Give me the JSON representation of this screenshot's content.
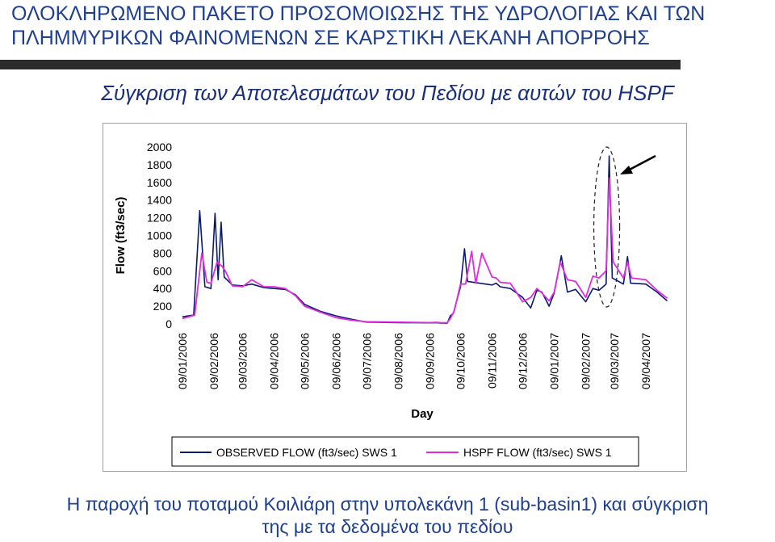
{
  "header": {
    "title_line1": "ΟΛΟΚΛΗΡΩΜΕΝΟ ΠΑΚΕΤΟ ΠΡΟΣΟΜΟΙΩΣΗΣ ΤΗΣ ΥΔΡΟΛΟΓΙΑΣ ΚΑΙ ΤΩΝ",
    "title_line2": "ΠΛΗΜΜΥΡΙΚΩΝ ΦΑΙΝΟΜΕΝΩΝ ΣΕ ΚΑΡΣΤΙΚΗ ΛΕΚΑΝΗ ΑΠΟΡΡΟΗΣ",
    "subtitle": "Σύγκριση των Αποτελεσμάτων του Πεδίου με αυτών του HSPF"
  },
  "caption": {
    "line1": "Η παροχή του ποταμού Κοιλιάρη στην υπολεκάνη 1 (sub-basin1) και σύγκριση",
    "line2": "της με τα δεδομένα του πεδίου"
  },
  "colors": {
    "observed": "#0a1a6e",
    "hspf": "#e22be0",
    "title": "#1f3f8f"
  },
  "chart_data": {
    "type": "line",
    "xlabel": "Day",
    "ylabel": "Flow (ft3/sec)",
    "ylim": [
      0,
      2000
    ],
    "yticks": [
      0,
      200,
      400,
      600,
      800,
      1000,
      1200,
      1400,
      1600,
      1800,
      2000
    ],
    "xlim": [
      "09/01/2006",
      "09/04/2007"
    ],
    "xticks": [
      "09/01/2006",
      "09/02/2006",
      "09/03/2006",
      "09/04/2006",
      "09/05/2006",
      "09/06/2006",
      "09/07/2006",
      "09/08/2006",
      "09/09/2006",
      "09/10/2006",
      "09/11/2006",
      "09/12/2006",
      "09/01/2007",
      "09/02/2007",
      "09/03/2007",
      "09/04/2007"
    ],
    "legend_position": "bottom",
    "annotations": [
      "dashed ellipse around peak near 09/03/2007",
      "arrow pointing to peak"
    ],
    "series": [
      {
        "name": "OBSERVED FLOW (ft3/sec) SWS 1",
        "points": [
          [
            "09/01/2006",
            80
          ],
          [
            "20/01/2006",
            100
          ],
          [
            "26/01/2006",
            1280
          ],
          [
            "31/01/2006",
            420
          ],
          [
            "06/02/2006",
            400
          ],
          [
            "10/02/2006",
            1250
          ],
          [
            "13/02/2006",
            500
          ],
          [
            "16/02/2006",
            1150
          ],
          [
            "19/02/2006",
            530
          ],
          [
            "27/02/2006",
            440
          ],
          [
            "09/03/2006",
            430
          ],
          [
            "18/03/2006",
            450
          ],
          [
            "30/03/2006",
            410
          ],
          [
            "09/04/2006",
            400
          ],
          [
            "20/04/2006",
            390
          ],
          [
            "30/04/2006",
            330
          ],
          [
            "09/05/2006",
            220
          ],
          [
            "25/05/2006",
            140
          ],
          [
            "09/06/2006",
            90
          ],
          [
            "25/06/2006",
            50
          ],
          [
            "09/07/2006",
            20
          ],
          [
            "09/08/2006",
            15
          ],
          [
            "09/09/2006",
            12
          ],
          [
            "15/09/2006",
            15
          ],
          [
            "20/09/2006",
            8
          ],
          [
            "26/09/2006",
            8
          ],
          [
            "29/09/2006",
            90
          ],
          [
            "02/10/2006",
            120
          ],
          [
            "09/10/2006",
            420
          ],
          [
            "13/10/2006",
            850
          ],
          [
            "16/10/2006",
            480
          ],
          [
            "09/11/2006",
            440
          ],
          [
            "13/11/2006",
            460
          ],
          [
            "17/11/2006",
            420
          ],
          [
            "27/11/2006",
            400
          ],
          [
            "09/12/2006",
            300
          ],
          [
            "17/12/2006",
            180
          ],
          [
            "23/12/2006",
            380
          ],
          [
            "28/12/2006",
            360
          ],
          [
            "04/01/2007",
            200
          ],
          [
            "09/01/2007",
            350
          ],
          [
            "16/01/2007",
            770
          ],
          [
            "22/01/2007",
            360
          ],
          [
            "30/01/2007",
            390
          ],
          [
            "09/02/2007",
            250
          ],
          [
            "16/02/2007",
            400
          ],
          [
            "22/02/2007",
            380
          ],
          [
            "01/03/2007",
            450
          ],
          [
            "04/03/2007",
            1900
          ],
          [
            "07/03/2007",
            520
          ],
          [
            "18/03/2007",
            450
          ],
          [
            "22/03/2007",
            760
          ],
          [
            "25/03/2007",
            460
          ],
          [
            "09/04/2007",
            450
          ],
          [
            "20/04/2007",
            360
          ],
          [
            "30/04/2007",
            260
          ]
        ]
      },
      {
        "name": "HSPF FLOW (ft3/sec) SWS 1",
        "points": [
          [
            "09/01/2006",
            60
          ],
          [
            "21/01/2006",
            100
          ],
          [
            "28/01/2006",
            800
          ],
          [
            "02/02/2006",
            470
          ],
          [
            "06/02/2006",
            460
          ],
          [
            "12/02/2006",
            700
          ],
          [
            "17/02/2006",
            650
          ],
          [
            "20/02/2006",
            600
          ],
          [
            "27/02/2006",
            430
          ],
          [
            "09/03/2006",
            420
          ],
          [
            "18/03/2006",
            500
          ],
          [
            "30/03/2006",
            420
          ],
          [
            "09/04/2006",
            420
          ],
          [
            "20/04/2006",
            400
          ],
          [
            "30/04/2006",
            320
          ],
          [
            "09/05/2006",
            200
          ],
          [
            "25/05/2006",
            130
          ],
          [
            "09/06/2006",
            70
          ],
          [
            "25/06/2006",
            40
          ],
          [
            "09/07/2006",
            25
          ],
          [
            "09/08/2006",
            20
          ],
          [
            "09/09/2006",
            15
          ],
          [
            "15/09/2006",
            18
          ],
          [
            "21/09/2006",
            12
          ],
          [
            "26/09/2006",
            15
          ],
          [
            "29/09/2006",
            60
          ],
          [
            "03/10/2006",
            150
          ],
          [
            "09/10/2006",
            450
          ],
          [
            "14/10/2006",
            450
          ],
          [
            "20/10/2006",
            820
          ],
          [
            "24/10/2006",
            460
          ],
          [
            "30/10/2006",
            800
          ],
          [
            "09/11/2006",
            530
          ],
          [
            "13/11/2006",
            520
          ],
          [
            "17/11/2006",
            470
          ],
          [
            "27/11/2006",
            460
          ],
          [
            "09/12/2006",
            250
          ],
          [
            "17/12/2006",
            300
          ],
          [
            "23/12/2006",
            400
          ],
          [
            "28/12/2006",
            350
          ],
          [
            "04/01/2007",
            260
          ],
          [
            "09/01/2007",
            360
          ],
          [
            "15/01/2007",
            700
          ],
          [
            "22/01/2007",
            500
          ],
          [
            "30/01/2007",
            480
          ],
          [
            "09/02/2007",
            300
          ],
          [
            "16/02/2007",
            540
          ],
          [
            "22/02/2007",
            520
          ],
          [
            "01/03/2007",
            600
          ],
          [
            "04/03/2007",
            1650
          ],
          [
            "08/03/2007",
            700
          ],
          [
            "18/03/2007",
            520
          ],
          [
            "22/03/2007",
            700
          ],
          [
            "26/03/2007",
            520
          ],
          [
            "09/04/2007",
            500
          ],
          [
            "20/04/2007",
            380
          ],
          [
            "30/04/2007",
            290
          ]
        ]
      }
    ]
  }
}
